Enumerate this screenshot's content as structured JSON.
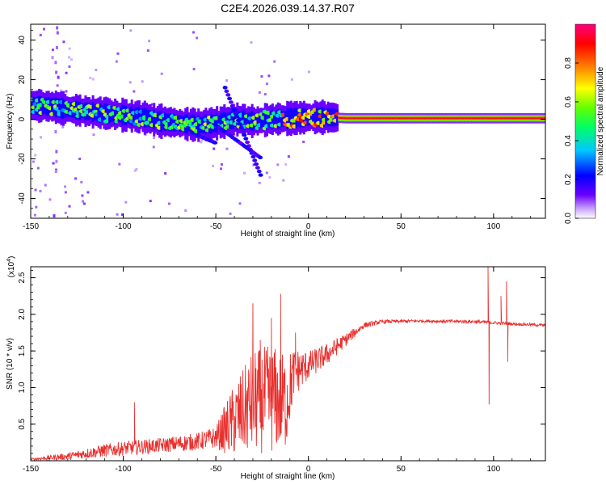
{
  "title": "C2E4.2026.039.14.37.R07",
  "chart_data": [
    {
      "type": "heatmap",
      "xlabel": "Height of straight line (km)",
      "ylabel": "Frequency (Hz)",
      "xlim": [
        -150,
        128
      ],
      "ylim": [
        -50,
        48
      ],
      "xticks": [
        -150,
        -100,
        -50,
        0,
        50,
        100
      ],
      "yticks": [
        -40,
        -20,
        0,
        20,
        40
      ],
      "colorbar": {
        "label": "Normalized spectral amplitude",
        "range": [
          0,
          1
        ],
        "ticks": [
          0.0,
          0.2,
          0.4,
          0.6,
          0.8
        ],
        "tick_labels": [
          "0.0",
          "0.2",
          "0.4",
          "0.6",
          "0.8"
        ],
        "colormap": [
          "#ffffff",
          "#c8a0ff",
          "#6a00ff",
          "#0000ff",
          "#00c8ff",
          "#00ff64",
          "#64ff00",
          "#ffff00",
          "#ff8000",
          "#ff0000",
          "#ff0080"
        ]
      },
      "ridge": [
        {
          "x": -150,
          "y": 7
        },
        {
          "x": -140,
          "y": 6.5
        },
        {
          "x": -130,
          "y": 5
        },
        {
          "x": -120,
          "y": 4
        },
        {
          "x": -110,
          "y": 3
        },
        {
          "x": -100,
          "y": 2
        },
        {
          "x": -90,
          "y": 1
        },
        {
          "x": -80,
          "y": -1
        },
        {
          "x": -70,
          "y": -2
        },
        {
          "x": -60,
          "y": -3
        },
        {
          "x": -50,
          "y": -2
        },
        {
          "x": -40,
          "y": 0
        },
        {
          "x": -30,
          "y": -1
        },
        {
          "x": -20,
          "y": 0
        },
        {
          "x": -10,
          "y": 0.5
        },
        {
          "x": 0,
          "y": 1
        },
        {
          "x": 10,
          "y": 1
        },
        {
          "x": 20,
          "y": 0.5
        },
        {
          "x": 50,
          "y": 0.5
        },
        {
          "x": 100,
          "y": 0.5
        },
        {
          "x": 128,
          "y": 0.5
        }
      ]
    },
    {
      "type": "line",
      "xlabel": "Height of straight line (km)",
      "ylabel": "SNR (10 * v/v)",
      "yscale_label": "(x10",
      "yscale_exp": "4",
      "xlim": [
        -150,
        128
      ],
      "ylim": [
        0,
        26500
      ],
      "xticks": [
        -150,
        -100,
        -50,
        0,
        50,
        100
      ],
      "yticks": [
        5000,
        10000,
        15000,
        20000,
        25000
      ],
      "ytick_labels": [
        "0.5",
        "1.0",
        "1.5",
        "2.0",
        "2.5"
      ],
      "color": "#e8302e",
      "envelope": [
        {
          "x": -150,
          "y": 200,
          "a": 150
        },
        {
          "x": -130,
          "y": 600,
          "a": 500
        },
        {
          "x": -110,
          "y": 1400,
          "a": 900
        },
        {
          "x": -95,
          "y": 1800,
          "a": 1000
        },
        {
          "x": -80,
          "y": 2100,
          "a": 1000
        },
        {
          "x": -60,
          "y": 2600,
          "a": 1200
        },
        {
          "x": -50,
          "y": 3200,
          "a": 1500
        },
        {
          "x": -42,
          "y": 5000,
          "a": 4500
        },
        {
          "x": -30,
          "y": 8000,
          "a": 7000
        },
        {
          "x": -20,
          "y": 8500,
          "a": 7500
        },
        {
          "x": -12,
          "y": 8000,
          "a": 6500
        },
        {
          "x": -8,
          "y": 12000,
          "a": 3500
        },
        {
          "x": 0,
          "y": 13000,
          "a": 2000
        },
        {
          "x": 10,
          "y": 14500,
          "a": 1500
        },
        {
          "x": 20,
          "y": 16500,
          "a": 900
        },
        {
          "x": 30,
          "y": 18500,
          "a": 400
        },
        {
          "x": 40,
          "y": 19000,
          "a": 250
        },
        {
          "x": 60,
          "y": 19100,
          "a": 200
        },
        {
          "x": 90,
          "y": 19000,
          "a": 250
        },
        {
          "x": 110,
          "y": 18700,
          "a": 200
        },
        {
          "x": 128,
          "y": 18500,
          "a": 200
        }
      ],
      "spikes": [
        {
          "x": -94,
          "y": 8000
        },
        {
          "x": -30,
          "y": 21500
        },
        {
          "x": -26,
          "y": 16500
        },
        {
          "x": -20,
          "y": 19500
        },
        {
          "x": -15,
          "y": 22800
        },
        {
          "x": -7,
          "y": 17500
        },
        {
          "x": 97,
          "y": 26500
        },
        {
          "x": 97.6,
          "y": 7700
        },
        {
          "x": 104,
          "y": 22500
        },
        {
          "x": 107,
          "y": 24500
        },
        {
          "x": 107.6,
          "y": 13500
        }
      ]
    }
  ]
}
